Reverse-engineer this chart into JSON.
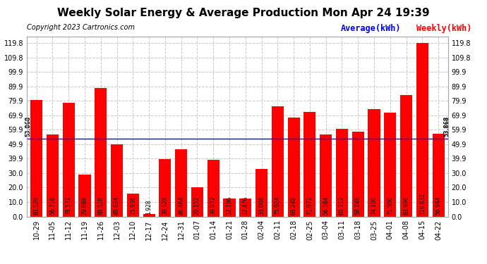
{
  "title": "Weekly Solar Energy & Average Production Mon Apr 24 19:39",
  "copyright": "Copyright 2023 Cartronics.com",
  "categories": [
    "10-29",
    "11-05",
    "11-12",
    "11-19",
    "11-26",
    "12-03",
    "12-10",
    "12-17",
    "12-24",
    "12-31",
    "01-07",
    "01-14",
    "01-21",
    "01-28",
    "02-04",
    "02-11",
    "02-18",
    "02-25",
    "03-04",
    "03-11",
    "03-18",
    "03-25",
    "04-01",
    "04-08",
    "04-15",
    "04-22"
  ],
  "values": [
    80.528,
    56.716,
    78.572,
    29.088,
    88.528,
    49.624,
    15.936,
    1.928,
    39.528,
    46.464,
    20.152,
    39.072,
    12.196,
    12.476,
    33.008,
    75.924,
    68.248,
    71.972,
    56.584,
    60.712,
    58.748,
    74.1,
    71.9,
    83.996,
    119.832,
    56.944
  ],
  "average": 53.868,
  "bar_color": "#ff0000",
  "average_color": "#0000ff",
  "average_label": "Average(kWh)",
  "weekly_label": "Weekly(kWh)",
  "yticks": [
    0.0,
    10.0,
    20.0,
    30.0,
    39.9,
    49.9,
    59.9,
    69.9,
    79.9,
    89.9,
    99.9,
    109.8,
    119.8
  ],
  "ymax": 124,
  "background_color": "#ffffff",
  "grid_color": "#c8c8c8",
  "bar_label_color": "#000000",
  "title_fontsize": 11,
  "copyright_fontsize": 7,
  "tick_fontsize": 7,
  "bar_label_fontsize": 5.5,
  "legend_fontsize": 8.5
}
